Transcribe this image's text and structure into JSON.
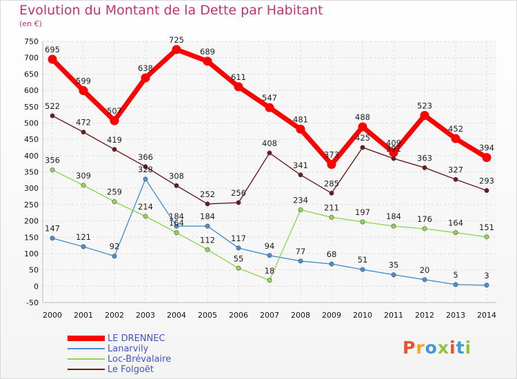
{
  "title": "Evolution du Montant de la Dette par Habitant",
  "subtitle": "(en €)",
  "brand": {
    "text": "Proxiti",
    "colors": [
      "#e9522c",
      "#f4a71c",
      "#3f9ad6",
      "#8fc640",
      "#e9522c",
      "#3f9ad6",
      "#8fc640"
    ]
  },
  "chart_data": {
    "type": "line",
    "x": [
      "2000",
      "2001",
      "2002",
      "2003",
      "2004",
      "2005",
      "2006",
      "2007",
      "2008",
      "2009",
      "2010",
      "2011",
      "2012",
      "2013",
      "2014"
    ],
    "ylim": [
      -50,
      750
    ],
    "yticks": [
      -50,
      0,
      50,
      100,
      150,
      200,
      250,
      300,
      350,
      400,
      450,
      500,
      550,
      600,
      650,
      700,
      750
    ],
    "grid": true,
    "legend_position": "bottom-left",
    "series": [
      {
        "name": "LE DRENNEC",
        "color": "#ff0000",
        "values": [
          695,
          599,
          507,
          638,
          725,
          689,
          611,
          547,
          481,
          373,
          488,
          409,
          523,
          452,
          394
        ]
      },
      {
        "name": "Lanarvily",
        "color": "#4a8fd0",
        "values": [
          147,
          121,
          92,
          328,
          184,
          184,
          117,
          94,
          77,
          68,
          51,
          35,
          20,
          5,
          3
        ]
      },
      {
        "name": "Loc-Brévalaire",
        "color": "#90d656",
        "values": [
          356,
          309,
          259,
          214,
          164,
          112,
          55,
          18,
          234,
          211,
          197,
          184,
          176,
          164,
          151
        ]
      },
      {
        "name": "Le Folgoët",
        "color": "#6b1a1a",
        "values": [
          522,
          472,
          419,
          366,
          308,
          252,
          256,
          408,
          341,
          285,
          425,
          391,
          363,
          327,
          293
        ]
      }
    ]
  }
}
